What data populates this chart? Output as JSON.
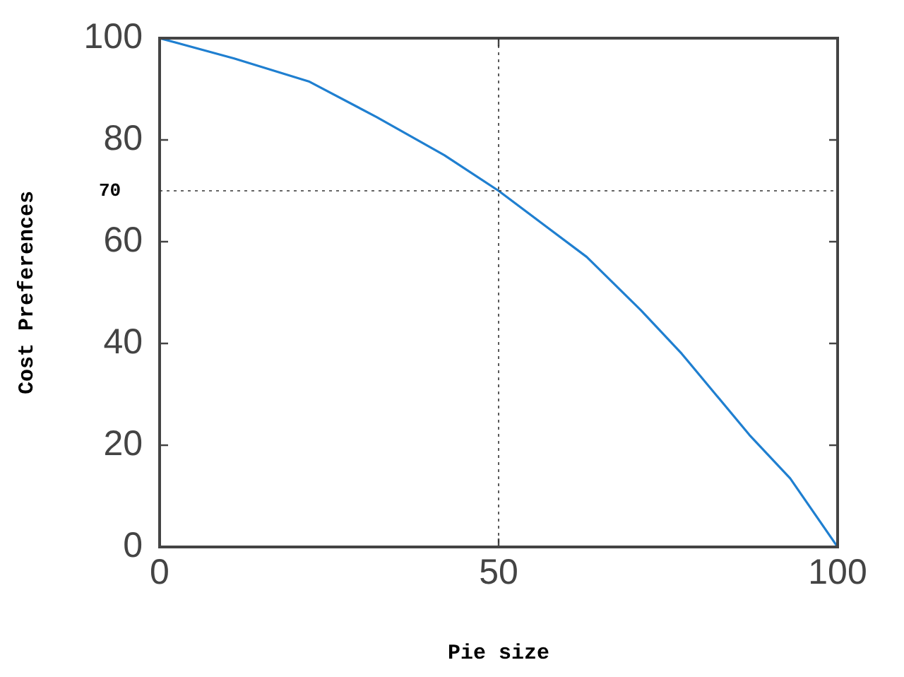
{
  "chart_data": {
    "type": "line",
    "xlabel": "Pie size",
    "ylabel": "Cost Preferences",
    "x": [
      0,
      11,
      22,
      32,
      42,
      50,
      56,
      63,
      71,
      77,
      82,
      87,
      93,
      100
    ],
    "series": [
      {
        "color": "#1f7fd0",
        "values": [
          100,
          96,
          91.5,
          84.5,
          77,
          70,
          64,
          57,
          46.5,
          38,
          30,
          22,
          13.5,
          0
        ]
      }
    ],
    "xlim": [
      0,
      100
    ],
    "xticks": [
      0,
      50,
      100
    ],
    "ylim": [
      0,
      100
    ],
    "yticks": [
      0,
      20,
      40,
      60,
      80,
      100
    ],
    "grid": false,
    "legend": false,
    "marker": "none",
    "line_style": "solid",
    "ref_lines": [
      {
        "axis": "x",
        "value": 50,
        "label": null
      },
      {
        "axis": "y",
        "value": 70,
        "label": "70"
      }
    ]
  }
}
